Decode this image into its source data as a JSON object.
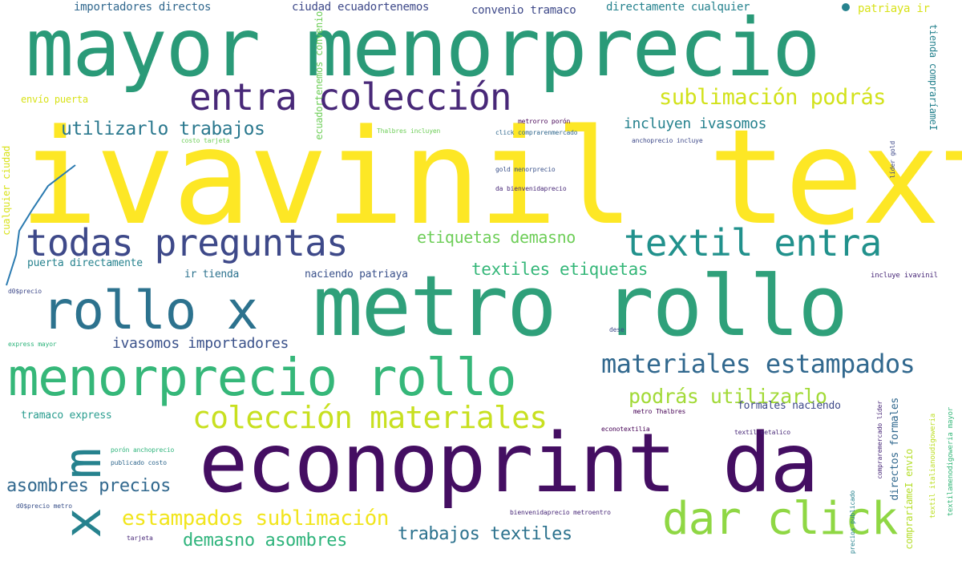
{
  "palette": {
    "background": "#ffffff",
    "yellow": "#fde725",
    "lime": "#b5de2b",
    "green": "#6ece58",
    "teal": "#35b779",
    "cyan": "#1f9e89",
    "blue": "#26828e",
    "steel": "#31688e",
    "indigo": "#3e4989",
    "purple": "#482878",
    "dark": "#440154"
  },
  "words": {
    "w01": "ivavinil textil",
    "w02": "mayor menorprecio",
    "w03": "metro rollo",
    "w04": "econoprint da",
    "w05": "menorprecio rollo",
    "w06": "rollo x",
    "w07": "todas preguntas",
    "w08": "textil entra",
    "w09": "entra colección",
    "w10": "dar click",
    "w11": "colección materiales",
    "w12": "materiales estampados",
    "w13": "x m",
    "w14": "sublimación podrás",
    "w15": "utilizarlo trabajos",
    "w16": "podrás utilizarlo",
    "w17": "etiquetas demasno",
    "w18": "textiles etiquetas",
    "w19": "estampados sublimación",
    "w20": "incluyen ivasomos",
    "w21": "ivasomos importadores",
    "w22": "asombres precios",
    "w23": "trabajos textiles",
    "w24": "demasno asombres",
    "w25": "importadores directos",
    "w26": "ciudad ecuadortenemos",
    "w27": "convenio tramaco",
    "w28": "directamente cualquier",
    "w29": "patriaya ir",
    "w30": "envío puerta",
    "w31": "puerta directamente",
    "w32": "ir tienda",
    "w33": "naciendo patriaya",
    "w34": "tramaco express",
    "w35": "formales naciendo",
    "w36": "directos formales",
    "w37": "tienda compraríameI",
    "w38": "cualquier ciudad",
    "w39": "ecuadortenemos convenio",
    "w40": "compraríameI envío",
    "w41": "incluye ivavinil",
    "w42": "express mayor",
    "w43": "d0$precio metro",
    "w44": "metrorro porón",
    "w45": "click comprarenmercado",
    "w46": "anchoprecio incluye",
    "w47": "gold menorprecio",
    "w48": "da bienvenidaprecio",
    "w49": "líder gold",
    "w50": "Thalbres incluyen",
    "w51": "metro Thalbres",
    "w52": "textil metalico",
    "w53": "porón anchoprecio",
    "w54": "publicado costo",
    "w55": "bienvenidaprecio metroentro",
    "w56": "d0$precio",
    "w57": "costo tarjeta",
    "w58": "tarjeta",
    "w59": "dese",
    "w60": "econotextilia",
    "w61": "precios publicado",
    "w62": "compraremercado líder",
    "w63": "textilamenodigoweria mayor",
    "w64": "textil italianoudigoweria"
  }
}
